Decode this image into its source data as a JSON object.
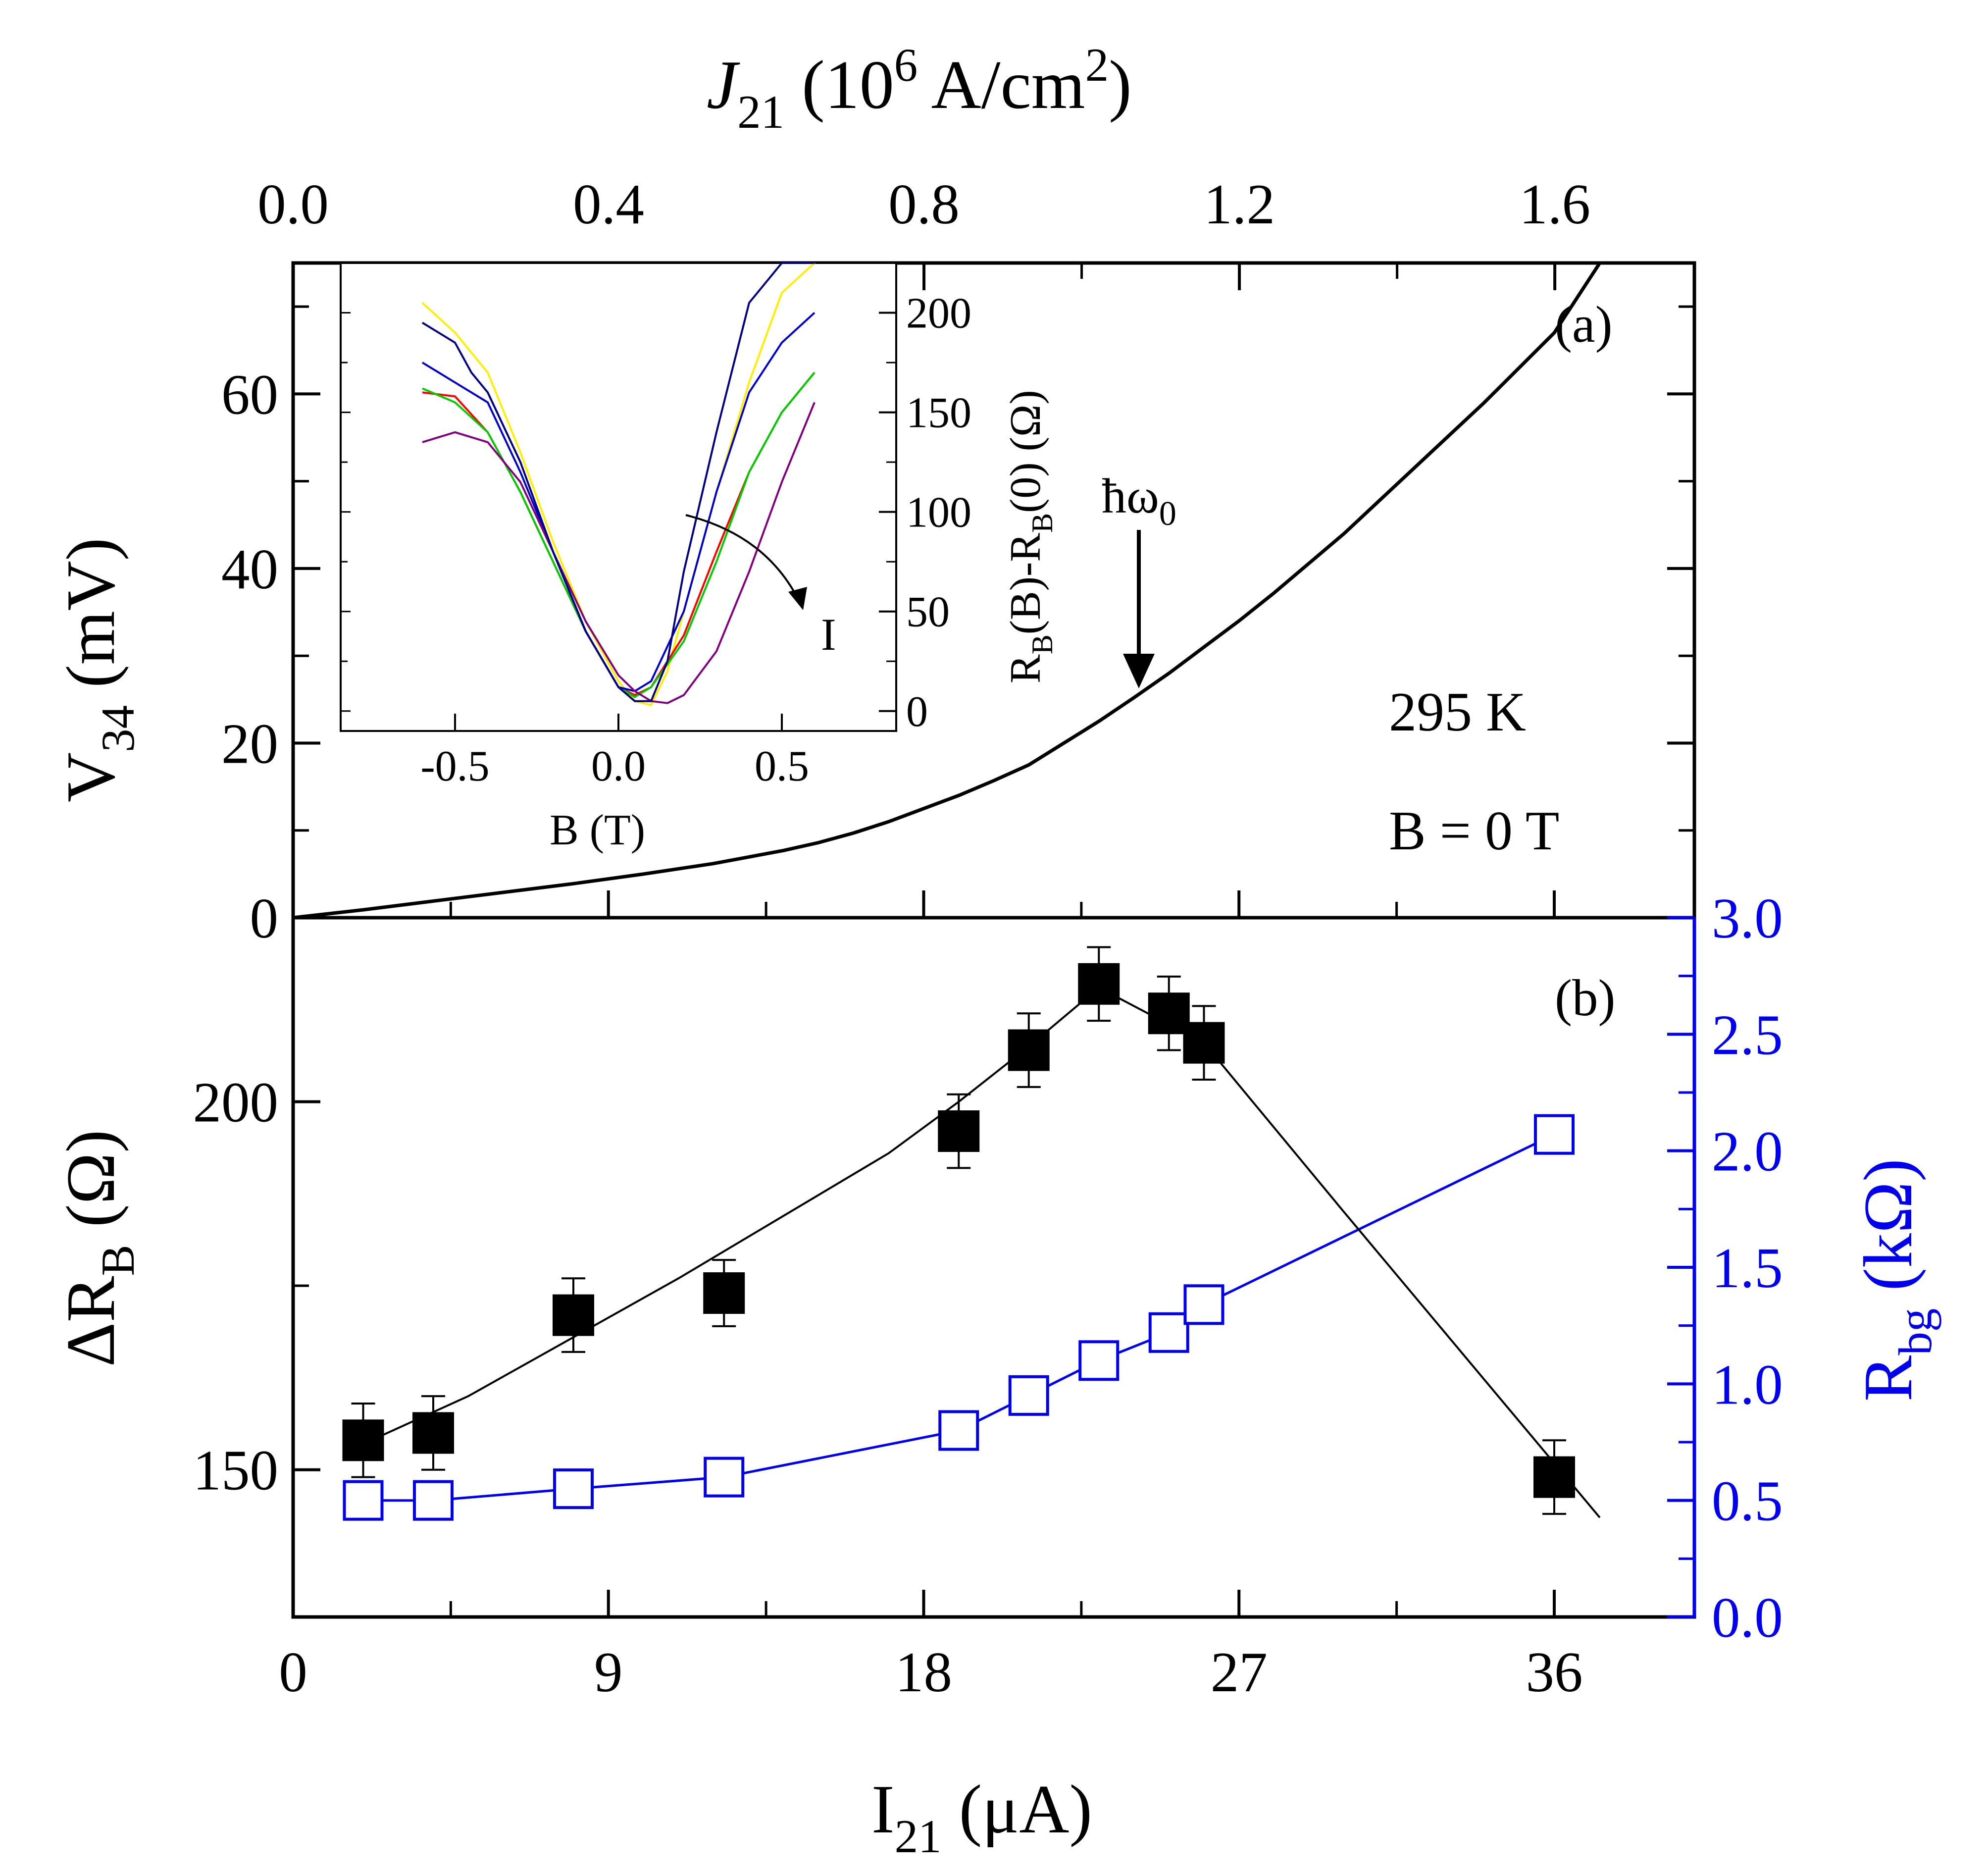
{
  "colors": {
    "black": "#000000",
    "blue": "#0000ee",
    "curve_colors": [
      "#ffee00",
      "#ff0000",
      "#00cc00",
      "#0000cc",
      "#800080",
      "#000080"
    ]
  },
  "chart_data": [
    {
      "panel": "a",
      "type": "line",
      "panel_label": "(a)",
      "xlabel": {
        "main": "I",
        "sub": "21",
        "unit": " (μA)"
      },
      "ylabel": {
        "main": "V",
        "sub": "34",
        "unit": " (mV)"
      },
      "top_xlabel": {
        "main": "J",
        "sub": "21",
        "mid": " (10",
        "sup1": "6",
        "mid2": " A/cm",
        "sup2": "2",
        "end": ")"
      },
      "xlim": [
        0,
        40
      ],
      "ylim": [
        0,
        75
      ],
      "x_ticks": [
        "0",
        "9",
        "18",
        "27",
        "36"
      ],
      "y_ticks": [
        "0",
        "20",
        "40",
        "60"
      ],
      "top_ticks": [
        "0.0",
        "0.4",
        "0.8",
        "1.2",
        "1.6"
      ],
      "top_xlim": [
        0,
        1.777
      ],
      "annotations": {
        "temperature": "295 K",
        "field": "B = 0 T",
        "phonon": "ħω",
        "phonon_sub": "0"
      },
      "series": [
        {
          "name": "V34 vs I21",
          "x": [
            0,
            2,
            4,
            6,
            8,
            10,
            12,
            14,
            15,
            16,
            17,
            18,
            19,
            20,
            21,
            22,
            23,
            24,
            25,
            26,
            27,
            28,
            30,
            32,
            34,
            36,
            37.3
          ],
          "y": [
            0,
            0.9,
            1.9,
            2.9,
            3.9,
            5.0,
            6.2,
            7.7,
            8.6,
            9.7,
            11,
            12.5,
            14,
            15.7,
            17.5,
            20,
            22.5,
            25.2,
            28,
            31,
            34,
            37.2,
            44,
            51.5,
            59,
            67,
            75
          ]
        }
      ]
    },
    {
      "panel": "a-inset",
      "type": "line",
      "xlabel": "B (T)",
      "ylabel": {
        "a": "R",
        "b": "B",
        "c": "(B)-R",
        "d": "B",
        "e": "(0) (Ω)"
      },
      "xlim": [
        -0.85,
        0.85
      ],
      "ylim": [
        -10,
        225
      ],
      "x_ticks": [
        "-0.5",
        "0.0",
        "0.5"
      ],
      "y_ticks": [
        "0",
        "50",
        "100",
        "150",
        "200"
      ],
      "arrow_label": "I",
      "series": [
        {
          "name": "curve-1",
          "color": "#ffee00",
          "x": [
            -0.6,
            -0.5,
            -0.4,
            -0.3,
            -0.2,
            -0.1,
            0.0,
            0.05,
            0.1,
            0.15,
            0.2,
            0.3,
            0.4,
            0.5,
            0.6
          ],
          "y": [
            205,
            190,
            170,
            130,
            85,
            45,
            15,
            5,
            3,
            20,
            50,
            110,
            165,
            210,
            240
          ]
        },
        {
          "name": "curve-2",
          "color": "#ff0000",
          "x": [
            -0.6,
            -0.5,
            -0.4,
            -0.3,
            -0.2,
            -0.1,
            0.0,
            0.05,
            0.1,
            0.2,
            0.3,
            0.4,
            0.5,
            0.6
          ],
          "y": [
            160,
            158,
            140,
            110,
            75,
            40,
            12,
            8,
            12,
            38,
            80,
            120,
            150,
            170
          ]
        },
        {
          "name": "curve-3",
          "color": "#00cc00",
          "x": [
            -0.6,
            -0.5,
            -0.4,
            -0.3,
            -0.2,
            -0.1,
            0.0,
            0.05,
            0.1,
            0.2,
            0.3,
            0.4,
            0.5,
            0.6
          ],
          "y": [
            162,
            155,
            140,
            110,
            75,
            40,
            12,
            7,
            12,
            35,
            75,
            120,
            150,
            170
          ]
        },
        {
          "name": "curve-4",
          "color": "#0000cc",
          "x": [
            -0.6,
            -0.5,
            -0.4,
            -0.3,
            -0.2,
            -0.1,
            0.0,
            0.05,
            0.1,
            0.2,
            0.3,
            0.4,
            0.5,
            0.6
          ],
          "y": [
            175,
            165,
            155,
            120,
            80,
            40,
            12,
            10,
            15,
            50,
            110,
            160,
            185,
            200
          ]
        },
        {
          "name": "curve-5",
          "color": "#800080",
          "x": [
            -0.6,
            -0.5,
            -0.4,
            -0.3,
            -0.2,
            -0.1,
            0.0,
            0.05,
            0.1,
            0.15,
            0.2,
            0.3,
            0.4,
            0.5,
            0.6
          ],
          "y": [
            135,
            140,
            135,
            115,
            80,
            45,
            18,
            10,
            5,
            4,
            8,
            30,
            70,
            115,
            155
          ]
        },
        {
          "name": "curve-6",
          "color": "#000080",
          "x": [
            -0.6,
            -0.5,
            -0.45,
            -0.4,
            -0.3,
            -0.2,
            -0.1,
            0.0,
            0.05,
            0.1,
            0.15,
            0.2,
            0.3,
            0.4,
            0.5,
            0.6
          ],
          "y": [
            195,
            185,
            170,
            160,
            125,
            80,
            40,
            12,
            5,
            5,
            25,
            70,
            140,
            205,
            250,
            285
          ]
        }
      ]
    },
    {
      "panel": "b",
      "type": "scatter",
      "panel_label": "(b)",
      "xlabel": {
        "main": "I",
        "sub": "21",
        "unit": " (μA)"
      },
      "ylabel": {
        "main": "ΔR",
        "sub": "B",
        "unit": " (Ω)"
      },
      "y2label": {
        "main": "R",
        "sub": "bg",
        "unit": " (kΩ)"
      },
      "xlim": [
        0,
        40
      ],
      "ylim": [
        130,
        225
      ],
      "y2lim": [
        0,
        3.0
      ],
      "y_ticks": [
        "150",
        "200"
      ],
      "y2_ticks": [
        "0.0",
        "0.5",
        "1.0",
        "1.5",
        "2.0",
        "2.5",
        "3.0"
      ],
      "series": [
        {
          "name": "ΔR_B",
          "x": [
            2,
            4,
            8,
            12.3,
            19,
            21,
            23,
            25,
            26,
            36
          ],
          "y": [
            154,
            155,
            171,
            174,
            196,
            207,
            216,
            212,
            208,
            149
          ],
          "err": [
            5,
            5,
            5,
            4.5,
            5,
            5,
            5,
            5,
            5,
            5
          ],
          "fit_x": [
            2,
            5,
            8,
            11,
            14,
            17,
            19,
            21,
            23,
            26,
            30,
            37.3
          ],
          "fit_y": [
            153.5,
            160,
            168,
            176,
            184.5,
            193,
            200,
            207.5,
            215.5,
            208,
            185,
            143.5
          ]
        },
        {
          "name": "R_bg",
          "x": [
            2,
            4,
            8,
            12.3,
            19,
            21,
            23,
            25,
            26,
            36
          ],
          "y": [
            0.5,
            0.5,
            0.55,
            0.6,
            0.8,
            0.95,
            1.1,
            1.22,
            1.34,
            2.07
          ]
        }
      ]
    }
  ]
}
